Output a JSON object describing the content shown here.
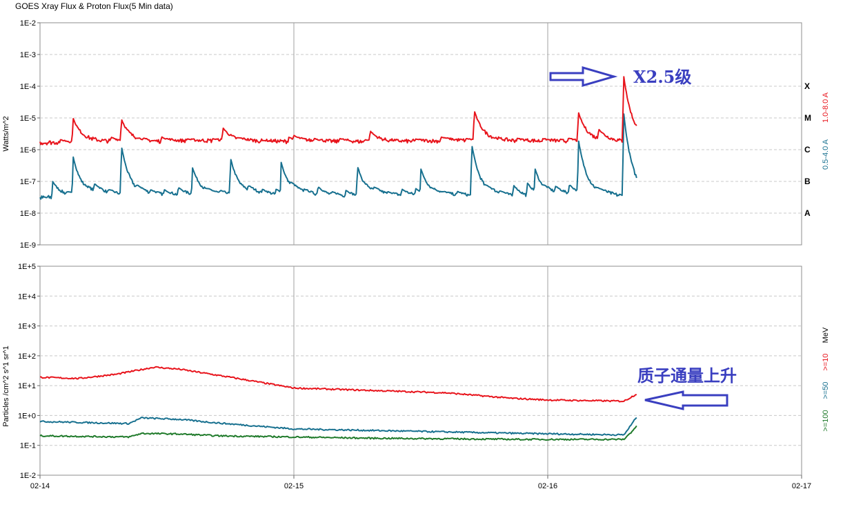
{
  "title": "GOES Xray Flux & Proton Flux(5 Min data)",
  "colors": {
    "red": "#e8141c",
    "blue": "#17708f",
    "green": "#1f7a2a",
    "arrow": "#3a3fc0",
    "grid_dash": "#c8c8c8",
    "grid_solid": "#a0a0a0"
  },
  "chart_data": [
    {
      "type": "line",
      "ylabel": "Watts/m^2",
      "yscale": "log",
      "ylim": [
        "1E-9",
        "1E-2"
      ],
      "yticks": [
        "1E-2",
        "1E-3",
        "1E-4",
        "1E-5",
        "1E-6",
        "1E-7",
        "1E-8",
        "1E-9"
      ],
      "flare_classes": [
        {
          "label": "X",
          "value": 0.0001
        },
        {
          "label": "M",
          "value": 1e-05
        },
        {
          "label": "C",
          "value": 1e-06
        },
        {
          "label": "B",
          "value": 1e-07
        },
        {
          "label": "A",
          "value": 1e-08
        }
      ],
      "series": [
        {
          "name": "1.0-8.0 A",
          "color": "#e8141c",
          "baseline_log": [
            -5.78,
            -5.74,
            -5.76,
            -5.72,
            -5.74,
            -5.75,
            -5.76,
            -5.74,
            -5.72,
            -5.73,
            -5.74,
            -5.76
          ],
          "peaks": [
            [
              0.13,
              -5.0
            ],
            [
              0.32,
              -5.02
            ],
            [
              0.48,
              -5.6
            ],
            [
              0.72,
              -5.3
            ],
            [
              1.0,
              -5.55
            ],
            [
              1.3,
              -5.4
            ],
            [
              1.58,
              -5.6
            ],
            [
              1.71,
              -4.75
            ],
            [
              2.2,
              -5.4
            ],
            [
              2.12,
              -4.8
            ],
            [
              2.298,
              -3.6
            ]
          ]
        },
        {
          "name": "0.5-4.0 A",
          "color": "#17708f",
          "baseline_log": [
            -7.52,
            -7.45,
            -7.5,
            -7.45,
            -7.48,
            -7.5,
            -7.52,
            -7.47,
            -7.5,
            -7.55,
            -7.45,
            -7.5
          ],
          "peaks": [
            [
              0.13,
              -6.2
            ],
            [
              0.32,
              -5.85
            ],
            [
              0.6,
              -6.55
            ],
            [
              0.75,
              -6.25
            ],
            [
              0.95,
              -6.4
            ],
            [
              1.25,
              -6.5
            ],
            [
              1.5,
              -6.6
            ],
            [
              1.7,
              -5.8
            ],
            [
              1.95,
              -6.6
            ],
            [
              2.12,
              -5.65
            ],
            [
              2.298,
              -4.75
            ]
          ]
        }
      ],
      "annotation": "X2.5级"
    },
    {
      "type": "line",
      "ylabel": "Particles /cm^2 s^1 sr^1",
      "yscale": "log",
      "ylim": [
        "1E-2",
        "1E+5"
      ],
      "yticks": [
        "1E+5",
        "1E+4",
        "1E+3",
        "1E+2",
        "1E+1",
        "1E+0",
        "1E-1",
        "1E-2"
      ],
      "xticks": [
        "02-14",
        "02-15",
        "02-16",
        "02-17"
      ],
      "x_unit": "days",
      "xlim": [
        0,
        3
      ],
      "data_end": 2.35,
      "units_label": "MeV",
      "series": [
        {
          "name": ">=10",
          "color": "#e8141c",
          "x": [
            0,
            0.15,
            0.3,
            0.45,
            0.55,
            0.75,
            1.0,
            1.3,
            1.6,
            1.85,
            2.0,
            2.15,
            2.3,
            2.35
          ],
          "y_log": [
            1.28,
            1.24,
            1.38,
            1.62,
            1.55,
            1.28,
            0.92,
            0.84,
            0.76,
            0.58,
            0.52,
            0.5,
            0.48,
            0.72
          ]
        },
        {
          "name": ">=50",
          "color": "#17708f",
          "x": [
            0,
            0.35,
            0.4,
            0.55,
            0.7,
            1.0,
            1.3,
            1.6,
            1.9,
            2.3,
            2.33,
            2.35
          ],
          "y_log": [
            -0.2,
            -0.27,
            -0.08,
            -0.13,
            -0.25,
            -0.45,
            -0.5,
            -0.55,
            -0.6,
            -0.65,
            -0.3,
            -0.05
          ]
        },
        {
          "name": ">=100",
          "color": "#1f7a2a",
          "x": [
            0,
            0.35,
            0.4,
            0.55,
            0.7,
            1.0,
            1.3,
            1.6,
            1.9,
            2.3,
            2.33,
            2.35
          ],
          "y_log": [
            -0.68,
            -0.72,
            -0.6,
            -0.62,
            -0.68,
            -0.72,
            -0.76,
            -0.78,
            -0.8,
            -0.8,
            -0.55,
            -0.35
          ]
        }
      ],
      "annotation": "质子通量上升"
    }
  ]
}
